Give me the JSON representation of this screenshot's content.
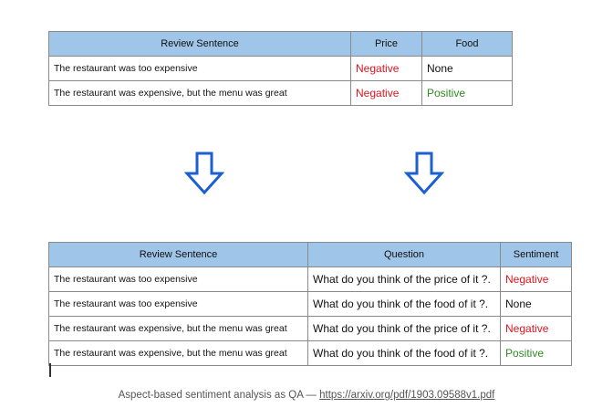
{
  "top_table": {
    "headers": [
      "Review Sentence",
      "Price",
      "Food"
    ],
    "rows": [
      {
        "sentence": "The restaurant was too expensive",
        "price": "Negative",
        "food": "None"
      },
      {
        "sentence": "The restaurant was expensive, but the menu was great",
        "price": "Negative",
        "food": "Positive"
      }
    ]
  },
  "bottom_table": {
    "headers": [
      "Review Sentence",
      "Question",
      "Sentiment"
    ],
    "rows": [
      {
        "sentence": "The restaurant was too expensive",
        "question": "What do you think of the price of it ?.",
        "sentiment": "Negative"
      },
      {
        "sentence": "The restaurant was too expensive",
        "question": "What do you think of the food of it ?.",
        "sentiment": "None"
      },
      {
        "sentence": "The restaurant was expensive, but the menu was great",
        "question": "What do you think of the price of it ?.",
        "sentiment": "Negative"
      },
      {
        "sentence": "The restaurant was expensive, but the menu was great",
        "question": "What do you think of the food of it ?.",
        "sentiment": "Positive"
      }
    ]
  },
  "colors": {
    "header_bg": "#9fc5e8",
    "negative": "#e0141e",
    "positive": "#2e8b22",
    "arrow_stroke": "#1c5fcf"
  },
  "caption": {
    "text": "Aspect-based sentiment analysis as QA — ",
    "link_text": "https://arxiv.org/pdf/1903.09588v1.pdf"
  }
}
